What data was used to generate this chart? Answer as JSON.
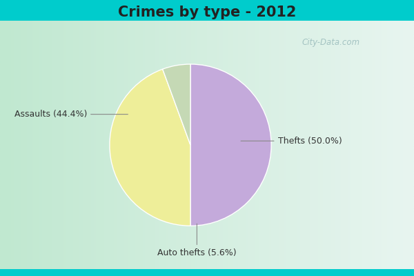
{
  "title": "Crimes by type - 2012",
  "slices": [
    {
      "label": "Thefts (50.0%)",
      "value": 50.0,
      "color": "#C4AADB"
    },
    {
      "label": "Assaults (44.4%)",
      "value": 44.4,
      "color": "#EEEE99"
    },
    {
      "label": "Auto thefts (5.6%)",
      "value": 5.6,
      "color": "#C5D9B5"
    }
  ],
  "bg_cyan": "#00CCCC",
  "bg_gradient_left": "#C0E8D0",
  "bg_gradient_right": "#E8F5F0",
  "watermark": "City-Data.com",
  "title_fontsize": 15,
  "label_fontsize": 9,
  "title_color": "#222222",
  "label_color": "#333333"
}
